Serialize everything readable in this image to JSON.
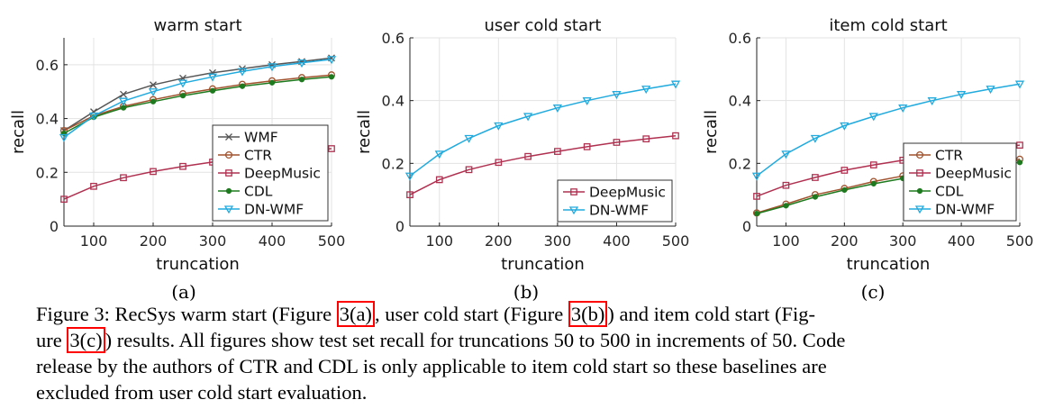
{
  "chart_data": [
    {
      "type": "line",
      "title": "warm start",
      "xlabel": "truncation",
      "ylabel": "recall",
      "x": [
        50,
        100,
        150,
        200,
        250,
        300,
        350,
        400,
        450,
        500
      ],
      "xticks": [
        "100",
        "200",
        "300",
        "400",
        "500"
      ],
      "yticks": [
        "0",
        "0.2",
        "0.4",
        "0.6"
      ],
      "xlim": [
        50,
        500
      ],
      "ylim": [
        0,
        0.7
      ],
      "grid": true,
      "legend": "lower-right",
      "series": [
        {
          "name": "WMF",
          "marker": "x",
          "color": "#555555",
          "values": [
            0.355,
            0.425,
            0.49,
            0.525,
            0.55,
            0.57,
            0.585,
            0.6,
            0.612,
            0.625
          ]
        },
        {
          "name": "CTR",
          "marker": "circle",
          "color": "#a0522d",
          "values": [
            0.355,
            0.41,
            0.445,
            0.47,
            0.492,
            0.51,
            0.527,
            0.54,
            0.552,
            0.562
          ]
        },
        {
          "name": "DeepMusic",
          "marker": "square",
          "color": "#b03050",
          "values": [
            0.1,
            0.148,
            0.18,
            0.203,
            0.222,
            0.238,
            0.253,
            0.267,
            0.278,
            0.288
          ]
        },
        {
          "name": "CDL",
          "marker": "dot",
          "color": "#1e7a1e",
          "values": [
            0.345,
            0.405,
            0.44,
            0.463,
            0.485,
            0.503,
            0.52,
            0.533,
            0.545,
            0.555
          ]
        },
        {
          "name": "DN-WMF",
          "marker": "triangle-down",
          "color": "#20aadd",
          "values": [
            0.33,
            0.41,
            0.465,
            0.5,
            0.532,
            0.555,
            0.575,
            0.593,
            0.607,
            0.62
          ]
        }
      ]
    },
    {
      "type": "line",
      "title": "user cold start",
      "xlabel": "truncation",
      "ylabel": "recall",
      "x": [
        50,
        100,
        150,
        200,
        250,
        300,
        350,
        400,
        450,
        500
      ],
      "xticks": [
        "100",
        "200",
        "300",
        "400",
        "500"
      ],
      "yticks": [
        "0",
        "0.2",
        "0.4",
        "0.6"
      ],
      "xlim": [
        50,
        500
      ],
      "ylim": [
        0,
        0.6
      ],
      "grid": true,
      "legend": "lower-right",
      "series": [
        {
          "name": "DeepMusic",
          "marker": "square",
          "color": "#b03050",
          "values": [
            0.1,
            0.148,
            0.18,
            0.203,
            0.222,
            0.238,
            0.253,
            0.267,
            0.278,
            0.288
          ]
        },
        {
          "name": "DN-WMF",
          "marker": "triangle-down",
          "color": "#20aadd",
          "values": [
            0.16,
            0.23,
            0.28,
            0.32,
            0.35,
            0.377,
            0.4,
            0.42,
            0.437,
            0.453
          ]
        }
      ]
    },
    {
      "type": "line",
      "title": "item cold start",
      "xlabel": "truncation",
      "ylabel": "recall",
      "x": [
        50,
        100,
        150,
        200,
        250,
        300,
        350,
        400,
        450,
        500
      ],
      "xticks": [
        "100",
        "200",
        "300",
        "400",
        "500"
      ],
      "yticks": [
        "0",
        "0.2",
        "0.4",
        "0.6"
      ],
      "xlim": [
        50,
        500
      ],
      "ylim": [
        0,
        0.6
      ],
      "grid": true,
      "legend": "lower-right",
      "series": [
        {
          "name": "CTR",
          "marker": "circle",
          "color": "#a0522d",
          "values": [
            0.042,
            0.07,
            0.1,
            0.12,
            0.142,
            0.16,
            0.178,
            0.192,
            0.203,
            0.213
          ]
        },
        {
          "name": "DeepMusic",
          "marker": "square",
          "color": "#b03050",
          "values": [
            0.095,
            0.13,
            0.155,
            0.178,
            0.195,
            0.21,
            0.225,
            0.237,
            0.248,
            0.258
          ]
        },
        {
          "name": "CDL",
          "marker": "dot",
          "color": "#1e7a1e",
          "values": [
            0.04,
            0.065,
            0.093,
            0.115,
            0.135,
            0.152,
            0.168,
            0.182,
            0.193,
            0.203
          ]
        },
        {
          "name": "DN-WMF",
          "marker": "triangle-down",
          "color": "#20aadd",
          "values": [
            0.16,
            0.23,
            0.28,
            0.32,
            0.35,
            0.377,
            0.4,
            0.42,
            0.437,
            0.453
          ]
        }
      ]
    }
  ],
  "subcaptions": [
    "(a)",
    "(b)",
    "(c)"
  ],
  "caption": {
    "p1": "Figure 3: RecSys warm start (Figure ",
    "ref_a": "3(a)",
    "p2": ", user cold start (Figure ",
    "ref_b": "3(b)",
    "p3": ") and item cold start (Fig-",
    "p4": "ure ",
    "ref_c": "3(c)",
    "p5": ") results. All figures show test set recall for truncations 50 to 500 in increments of 50. Code",
    "line3": "release by the authors of CTR and CDL is only applicable to item cold start so these baselines are",
    "line4": "excluded from user cold start evaluation."
  }
}
